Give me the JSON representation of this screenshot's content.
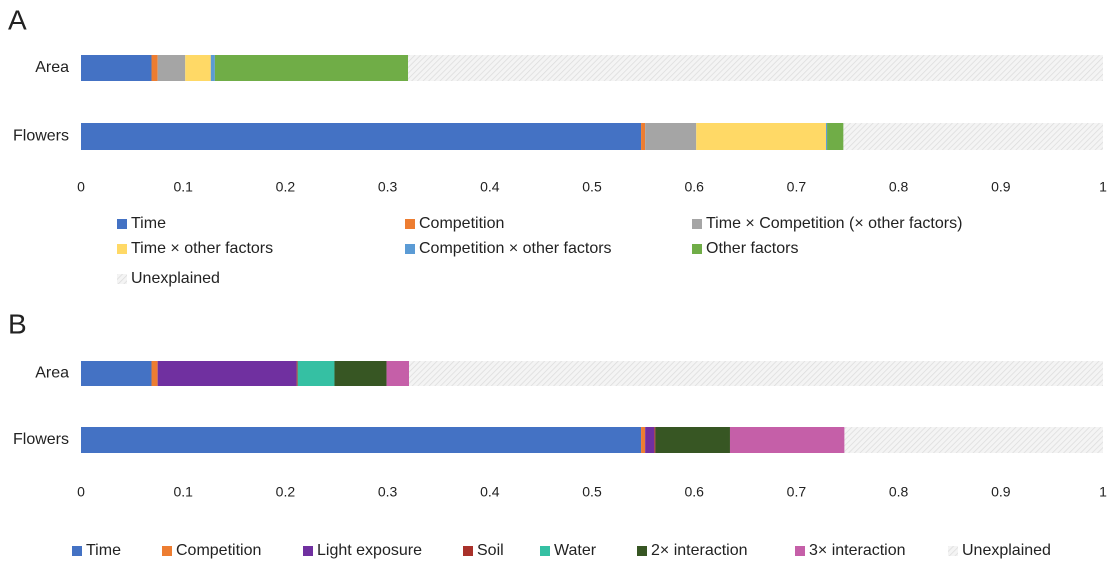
{
  "chart_data": [
    {
      "type": "bar",
      "title": "A",
      "stacked": true,
      "orientation": "horizontal",
      "categories": [
        "Area",
        "Flowers"
      ],
      "series": [
        {
          "name": "Time",
          "color": "#4472c4",
          "values": [
            0.069,
            0.548
          ]
        },
        {
          "name": "Competition",
          "color": "#ed7d31",
          "values": [
            0.006,
            0.004
          ]
        },
        {
          "name": "Time × Competition (× other factors)",
          "color": "#a5a5a5",
          "values": [
            0.027,
            0.05
          ]
        },
        {
          "name": "Time × other factors",
          "color": "#ffd966",
          "values": [
            0.025,
            0.127
          ]
        },
        {
          "name": "Competition × other factors",
          "color": "#5b9bd5",
          "values": [
            0.004,
            0.001
          ]
        },
        {
          "name": "Other factors",
          "color": "#70ad47",
          "values": [
            0.189,
            0.016
          ]
        },
        {
          "name": "Unexplained",
          "color": "#d9d9d9",
          "hatch": true,
          "values": [
            0.68,
            0.254
          ]
        }
      ],
      "xlim": [
        0,
        1
      ],
      "xticks": [
        0,
        0.1,
        0.2,
        0.3,
        0.4,
        0.5,
        0.6,
        0.7,
        0.8,
        0.9,
        1
      ]
    },
    {
      "type": "bar",
      "title": "B",
      "stacked": true,
      "orientation": "horizontal",
      "categories": [
        "Area",
        "Flowers"
      ],
      "series": [
        {
          "name": "Time",
          "color": "#4472c4",
          "values": [
            0.069,
            0.548
          ]
        },
        {
          "name": "Competition",
          "color": "#ed7d31",
          "values": [
            0.006,
            0.004
          ]
        },
        {
          "name": "Light exposure",
          "color": "#7030a0",
          "values": [
            0.136,
            0.009
          ]
        },
        {
          "name": "Soil",
          "color": "#a9312a",
          "values": [
            0.001,
            0.001
          ]
        },
        {
          "name": "Water",
          "color": "#35c0a3",
          "values": [
            0.036,
            0
          ]
        },
        {
          "name": "2× interaction",
          "color": "#375623",
          "values": [
            0.051,
            0.073
          ]
        },
        {
          "name": "3× interaction",
          "color": "#c55fa8",
          "values": [
            0.022,
            0.112
          ]
        },
        {
          "name": "Unexplained",
          "color": "#d9d9d9",
          "hatch": true,
          "values": [
            0.679,
            0.253
          ]
        }
      ],
      "xlim": [
        0,
        1
      ],
      "xticks": [
        0,
        0.1,
        0.2,
        0.3,
        0.4,
        0.5,
        0.6,
        0.7,
        0.8,
        0.9,
        1
      ]
    }
  ]
}
